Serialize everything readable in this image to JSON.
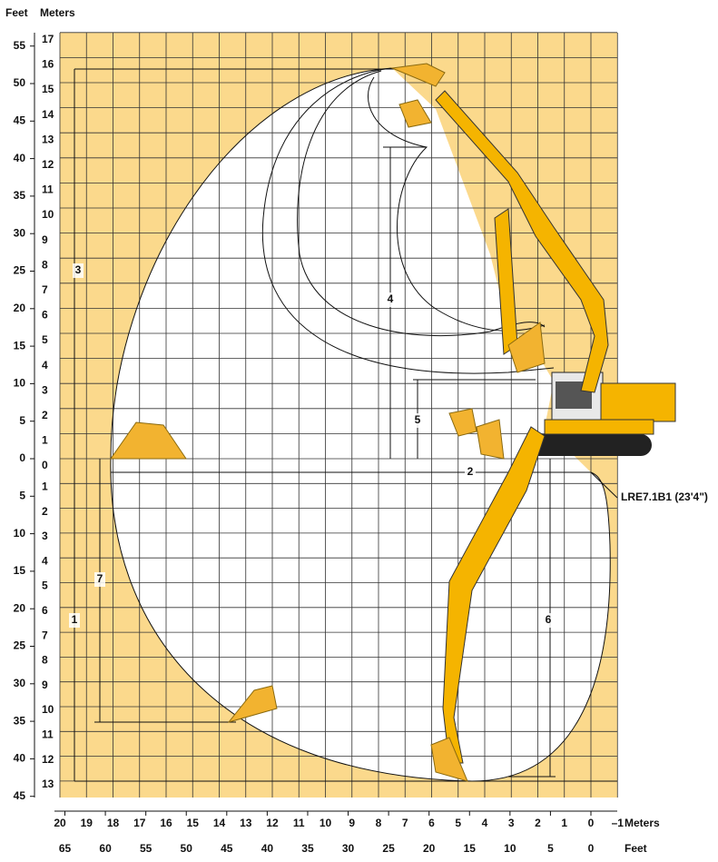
{
  "header": {
    "feet": "Feet",
    "meters": "Meters"
  },
  "left_meters_up": [
    "17",
    "16",
    "15",
    "14",
    "13",
    "12",
    "11",
    "10",
    "9",
    "8",
    "7",
    "6",
    "5",
    "4",
    "3",
    "2",
    "1",
    "0"
  ],
  "left_meters_down": [
    "1",
    "2",
    "3",
    "4",
    "5",
    "6",
    "7",
    "8",
    "9",
    "10",
    "11",
    "12",
    "13"
  ],
  "left_feet_up": [
    "55",
    "50",
    "45",
    "40",
    "35",
    "30",
    "25",
    "20",
    "15",
    "10",
    "5",
    "0"
  ],
  "left_feet_down": [
    "5",
    "10",
    "15",
    "20",
    "25",
    "30",
    "35",
    "40",
    "45"
  ],
  "bottom_meters": [
    "20",
    "19",
    "18",
    "17",
    "16",
    "15",
    "14",
    "13",
    "12",
    "11",
    "10",
    "9",
    "8",
    "7",
    "6",
    "5",
    "4",
    "3",
    "2",
    "1",
    "0",
    "–1"
  ],
  "bottom_meters_label": "Meters",
  "bottom_feet": [
    "65",
    "60",
    "55",
    "50",
    "45",
    "40",
    "35",
    "30",
    "25",
    "20",
    "15",
    "10",
    "5",
    "0"
  ],
  "bottom_feet_label": "Feet",
  "dimensions": [
    "1",
    "2",
    "3",
    "4",
    "5",
    "6",
    "7"
  ],
  "stick_label": "LRE7.1B1 (23'4\")"
}
